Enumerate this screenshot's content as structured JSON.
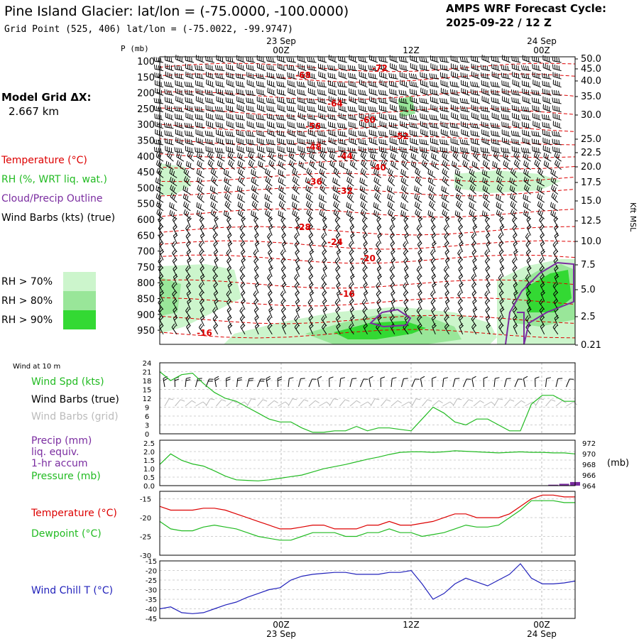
{
  "header": {
    "title": "Pine Island Glacier:  lat/lon = (-75.0000, -100.0000)",
    "grid_point": "Grid Point (525, 406) lat/lon = (-75.0022, -99.9747)",
    "cycle_label": "AMPS WRF Forecast Cycle:",
    "cycle_value": "2025-09-22 / 12  Z"
  },
  "side_labels": {
    "model_grid": "Model Grid ΔX:",
    "model_grid_value": "2.667 km",
    "temperature": "Temperature (°C)",
    "rh": "RH (%, WRT liq. wat.)",
    "cloud": "Cloud/Precip Outline",
    "wind_barbs": "Wind Barbs (kts) (true)",
    "rh_70": "RH > 70%",
    "rh_80": "RH > 80%",
    "rh_90": "RH > 90%",
    "rh_colors": [
      "#ccf5cc",
      "#99e699",
      "#33d933"
    ]
  },
  "colors": {
    "temperature": "#dd0000",
    "rh": "#22bb22",
    "cloud": "#7a2ca0",
    "wind_chill": "#2222bb",
    "grid_gray": "#bdbdbd"
  },
  "chart_data": [
    {
      "type": "time-height cross-section",
      "pressure_label": "P (mb)",
      "pressure_ticks": [
        "100",
        "150",
        "200",
        "250",
        "300",
        "350",
        "400",
        "450",
        "500",
        "550",
        "600",
        "650",
        "700",
        "750",
        "800",
        "850",
        "900",
        "950"
      ],
      "height_label": "Kft MSL",
      "height_ticks": [
        "50.0",
        "45.0",
        "40.0",
        "35.0",
        "30.0",
        "25.0",
        "22.5",
        "20.0",
        "17.5",
        "15.0",
        "12.5",
        "10.0",
        "7.5",
        "5.0",
        "2.5",
        "0.21"
      ],
      "time_ticks": [
        {
          "time": "00Z",
          "date": "23 Sep"
        },
        {
          "time": "12Z",
          "date": ""
        },
        {
          "time": "00Z",
          "date": "24 Sep"
        }
      ],
      "temperature_contour_labels": [
        "-72",
        "-68",
        "-64",
        "-60",
        "-56",
        "-52",
        "-48",
        "-44",
        "-40",
        "-36",
        "-32",
        "-28",
        "-24",
        "-20",
        "-16",
        "-16"
      ],
      "series": [
        {
          "name": "Temperature contours (°C)",
          "values": [
            -72,
            -68,
            -64,
            -60,
            -56,
            -52,
            -48,
            -44,
            -40,
            -36,
            -32,
            -28,
            -24,
            -20,
            -16
          ]
        }
      ]
    },
    {
      "type": "line",
      "title": "Wind at 10 m",
      "legend": [
        "Wind Spd (kts)",
        "Wind Barbs (true)",
        "Wind Barbs (grid)"
      ],
      "y_ticks": [
        "24",
        "21",
        "18",
        "15",
        "12",
        "9",
        "6",
        "3",
        "0"
      ],
      "ylim": [
        0,
        24
      ],
      "series": [
        {
          "name": "Wind Spd (kts)",
          "values": [
            21,
            18,
            20,
            20.5,
            17,
            14,
            12,
            11,
            9,
            7,
            5,
            4,
            4,
            2,
            0.5,
            0.5,
            1,
            1,
            2.5,
            1,
            2,
            2,
            1.5,
            1,
            5,
            9,
            7,
            4,
            3,
            5,
            5,
            3,
            1,
            1,
            10,
            13,
            13,
            11,
            11
          ]
        }
      ]
    },
    {
      "type": "line",
      "legend": [
        "Precip (mm)",
        "liq. equiv.",
        "1-hr accum",
        "Pressure (mb)"
      ],
      "left_ticks": [
        "2.5",
        "2.0",
        "1.5",
        "1.0",
        "0.5",
        "0.0"
      ],
      "right_ticks": [
        "972",
        "970",
        "968",
        "966",
        "964"
      ],
      "right_unit": "(mb)",
      "precip_lim": [
        0,
        2.5
      ],
      "pressure_lim": [
        964,
        972
      ],
      "series": [
        {
          "name": "Pressure (mb)",
          "values": [
            968.0,
            970.0,
            968.8,
            968.1,
            967.7,
            966.8,
            965.8,
            965.1,
            965.0,
            964.9,
            965.1,
            965.4,
            965.7,
            966.0,
            966.6,
            967.2,
            967.6,
            968.0,
            968.5,
            969.0,
            969.4,
            969.9,
            970.3,
            970.4,
            970.4,
            970.3,
            970.4,
            970.6,
            970.5,
            970.4,
            970.3,
            970.2,
            970.3,
            970.4,
            970.3,
            970.3,
            970.2,
            970.2,
            970.0
          ]
        },
        {
          "name": "Precip (mm)",
          "values": [
            0,
            0,
            0,
            0,
            0,
            0,
            0,
            0,
            0,
            0,
            0,
            0,
            0,
            0,
            0,
            0,
            0,
            0,
            0,
            0,
            0,
            0,
            0,
            0,
            0,
            0,
            0,
            0,
            0,
            0,
            0,
            0,
            0,
            0,
            0,
            0,
            0.05,
            0.1,
            0.2
          ]
        }
      ]
    },
    {
      "type": "line",
      "legend": [
        "Temperature (°C)",
        "Dewpoint (°C)"
      ],
      "y_ticks": [
        "-15",
        "-20",
        "-25",
        "-30"
      ],
      "ylim": [
        -30,
        -13
      ],
      "series": [
        {
          "name": "Temperature (°C)",
          "values": [
            -17,
            -18,
            -18,
            -18,
            -17.5,
            -17.5,
            -18,
            -19,
            -20,
            -21,
            -22,
            -23,
            -23,
            -22.5,
            -22,
            -22,
            -23,
            -23,
            -23,
            -22,
            -22,
            -21,
            -22,
            -22,
            -21.5,
            -21,
            -20,
            -19,
            -19,
            -20,
            -20,
            -20,
            -19,
            -17,
            -15,
            -14,
            -14,
            -14.5,
            -14.5
          ]
        },
        {
          "name": "Dewpoint (°C)",
          "values": [
            -21,
            -23,
            -23.5,
            -23.5,
            -22.5,
            -22,
            -22.5,
            -23,
            -24,
            -25,
            -25.5,
            -26,
            -26,
            -25,
            -24,
            -24,
            -24,
            -25,
            -25,
            -24,
            -24,
            -23,
            -24,
            -24,
            -25,
            -24.5,
            -24,
            -23,
            -22,
            -22.5,
            -22.5,
            -22,
            -20,
            -18,
            -15.5,
            -15.5,
            -15.5,
            -16,
            -16
          ]
        }
      ]
    },
    {
      "type": "line",
      "legend": [
        "Wind Chill T (°C)"
      ],
      "y_ticks": [
        "-15",
        "-20",
        "-25",
        "-30",
        "-35",
        "-40",
        "-45"
      ],
      "ylim": [
        -45,
        -15
      ],
      "series": [
        {
          "name": "Wind Chill T (°C)",
          "values": [
            -40,
            -39,
            -42,
            -42.5,
            -42,
            -40,
            -38,
            -36.5,
            -34,
            -32,
            -30,
            -29,
            -25,
            -23,
            -22,
            -21.5,
            -21,
            -21,
            -22,
            -22,
            -22,
            -21,
            -21,
            -20,
            -27,
            -35,
            -32,
            -27,
            -24,
            -26,
            -28,
            -25,
            -22,
            -16.5,
            -24,
            -27,
            -27,
            -26.5,
            -25.5
          ]
        }
      ]
    }
  ],
  "bottom_axis": {
    "ticks": [
      {
        "time": "00Z",
        "date": "23 Sep"
      },
      {
        "time": "12Z",
        "date": ""
      },
      {
        "time": "00Z",
        "date": "24 Sep"
      }
    ]
  },
  "small_labels": {
    "wind10m": "Wind at 10 m",
    "wind_spd": "Wind Spd (kts)",
    "wind_barbs_true": "Wind Barbs (true)",
    "wind_barbs_grid": "Wind Barbs (grid)",
    "precip": "Precip (mm)",
    "liq": "liq. equiv.",
    "accum": "1-hr accum",
    "pressure": "Pressure (mb)",
    "pressure_unit": "(mb)",
    "temperature": "Temperature (°C)",
    "dewpoint": "Dewpoint (°C)",
    "wind_chill": "Wind Chill T (°C)"
  }
}
